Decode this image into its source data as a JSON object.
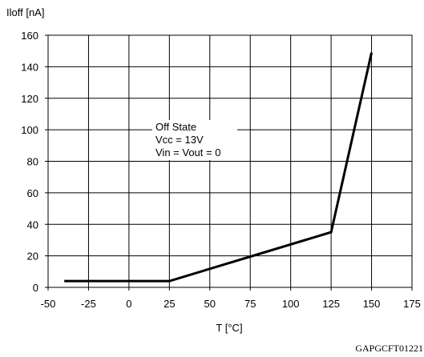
{
  "chart_data": {
    "type": "line",
    "ylabel": "Iloff [nA]",
    "xlabel": "T [°C]",
    "xlim": [
      -50,
      175
    ],
    "ylim": [
      0,
      160
    ],
    "x_ticks": [
      -50,
      -25,
      0,
      25,
      50,
      75,
      100,
      125,
      150,
      175
    ],
    "y_ticks": [
      0,
      20,
      40,
      60,
      80,
      100,
      120,
      140,
      160
    ],
    "grid": true,
    "series": [
      {
        "x": [
          -40,
          25,
          125,
          150
        ],
        "y": [
          4,
          4,
          35,
          149
        ]
      }
    ],
    "annotation": [
      "Off State",
      "Vcc = 13V",
      "Vin = Vout = 0"
    ],
    "figure_code": "GAPGCFT01221"
  }
}
